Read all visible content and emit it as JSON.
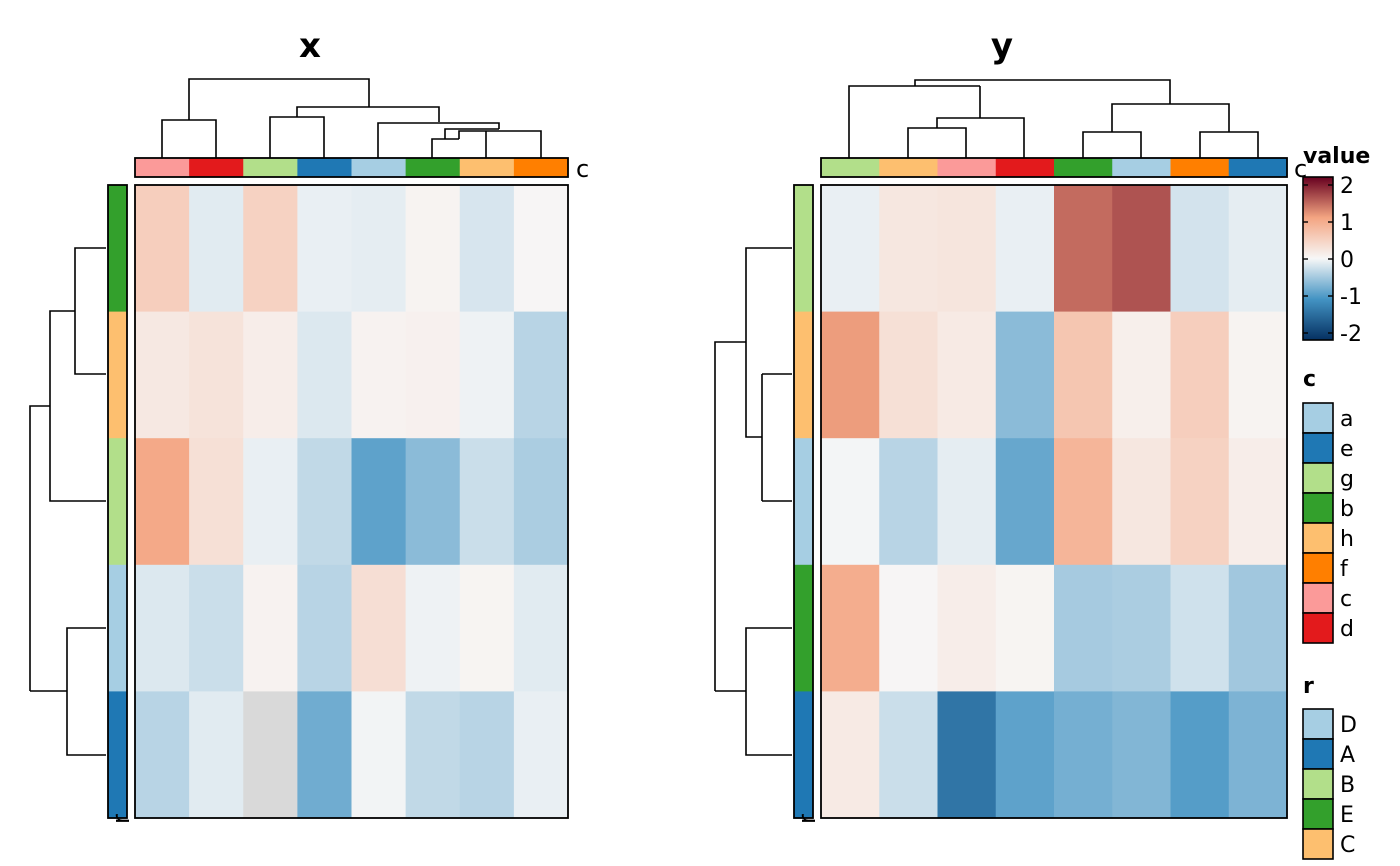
{
  "chart_data": [
    {
      "type": "heatmap",
      "title": "x",
      "column_annotation_name": "c",
      "row_annotation_name": "r",
      "column_groups": [
        "c",
        "d",
        "g",
        "e",
        "a",
        "b",
        "h",
        "f"
      ],
      "row_groups": [
        "E",
        "C",
        "B",
        "D",
        "A"
      ],
      "values": [
        [
          0.5,
          -0.12,
          0.45,
          -0.08,
          -0.1,
          0.05,
          -0.18,
          0.02
        ],
        [
          0.18,
          0.25,
          0.12,
          -0.15,
          0.06,
          0.08,
          -0.05,
          -0.35
        ],
        [
          0.95,
          0.28,
          -0.08,
          -0.3,
          -0.85,
          -0.6,
          -0.25,
          -0.42
        ],
        [
          -0.15,
          -0.25,
          0.06,
          -0.35,
          0.3,
          -0.05,
          0.04,
          -0.12
        ],
        [
          -0.35,
          -0.12,
          null,
          -0.75,
          -0.03,
          -0.3,
          -0.35,
          -0.08
        ]
      ]
    },
    {
      "type": "heatmap",
      "title": "y",
      "column_annotation_name": "c",
      "row_annotation_name": "r",
      "column_groups": [
        "g",
        "h",
        "c",
        "d",
        "b",
        "a",
        "f",
        "e"
      ],
      "row_groups": [
        "B",
        "C",
        "D",
        "E",
        "A"
      ],
      "values": [
        [
          -0.08,
          0.2,
          0.22,
          -0.08,
          1.35,
          1.5,
          -0.2,
          -0.1
        ],
        [
          1.05,
          0.28,
          0.16,
          -0.6,
          0.6,
          0.1,
          0.5,
          0.05
        ],
        [
          -0.02,
          -0.35,
          -0.1,
          -0.8,
          0.8,
          0.2,
          0.45,
          0.12
        ],
        [
          0.9,
          0.02,
          0.12,
          0.04,
          -0.45,
          -0.42,
          -0.22,
          -0.48
        ],
        [
          0.16,
          -0.25,
          -1.3,
          -0.85,
          -0.72,
          -0.65,
          -0.9,
          -0.68
        ]
      ]
    }
  ],
  "palettes": {
    "groups": {
      "a": "#A6CEE3",
      "e": "#1F78B4",
      "g": "#B2DF8A",
      "b": "#33A02C",
      "h": "#FDBF6F",
      "f": "#FF7F00",
      "c": "#FB9A99",
      "d": "#E31A1C",
      "D": "#A6CEE3",
      "A": "#1F78B4",
      "B": "#B2DF8A",
      "E": "#33A02C",
      "C": "#FDBF6F"
    },
    "value_scale": {
      "stops": [
        -2,
        -1,
        0,
        1,
        2
      ],
      "colors": [
        "#053061",
        "#4393C3",
        "#F7F7F7",
        "#F4A582",
        "#67001F"
      ],
      "na_color": "#D9D9D9"
    }
  },
  "legends": {
    "value": {
      "title": "value",
      "ticks": [
        "2",
        "1",
        "0",
        "-1",
        "-2"
      ]
    },
    "c": {
      "title": "c",
      "items": [
        "a",
        "e",
        "g",
        "b",
        "h",
        "f",
        "c",
        "d"
      ]
    },
    "r": {
      "title": "r",
      "items": [
        "D",
        "A",
        "B",
        "E",
        "C"
      ]
    }
  }
}
